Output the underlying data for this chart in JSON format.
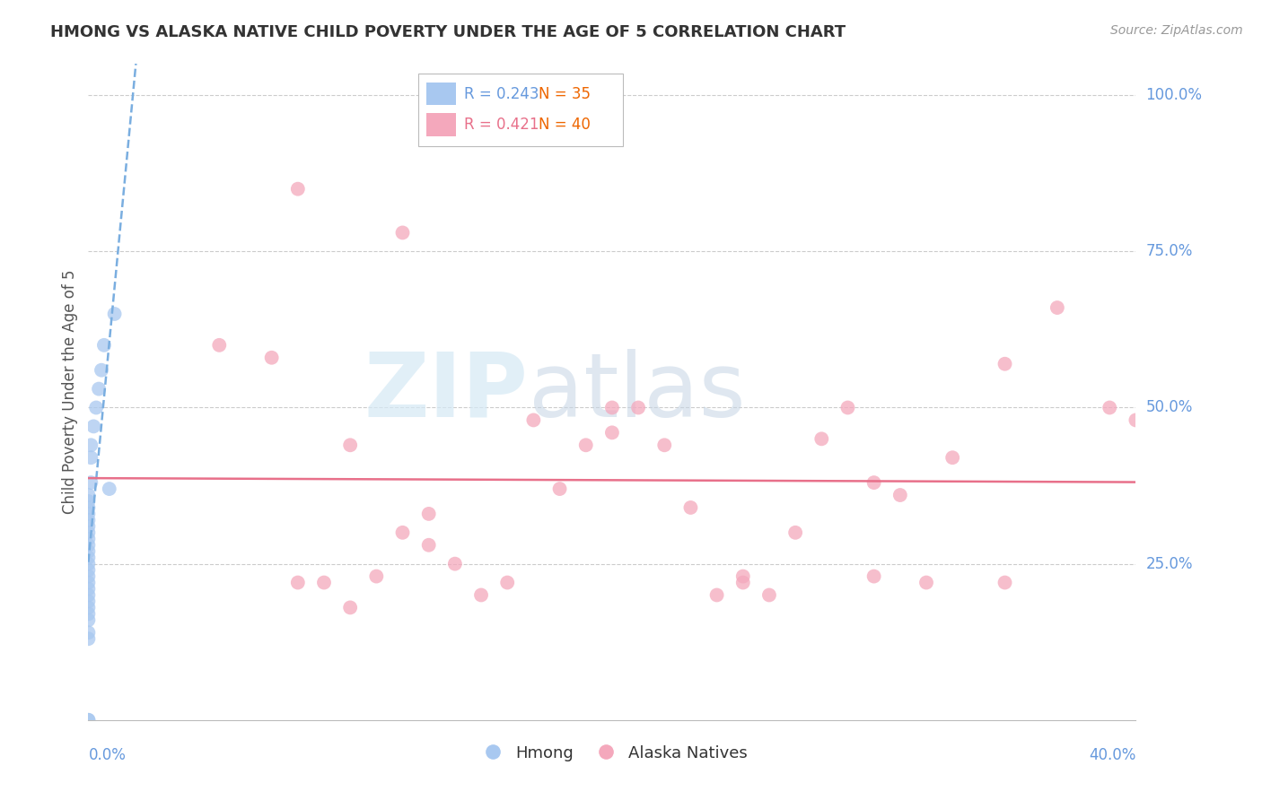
{
  "title": "HMONG VS ALASKA NATIVE CHILD POVERTY UNDER THE AGE OF 5 CORRELATION CHART",
  "source": "Source: ZipAtlas.com",
  "ylabel": "Child Poverty Under the Age of 5",
  "hmong_R": 0.243,
  "hmong_N": 35,
  "alaska_R": 0.421,
  "alaska_N": 40,
  "hmong_color": "#a8c8f0",
  "alaska_color": "#f4a8bc",
  "hmong_line_color": "#7aaee0",
  "alaska_line_color": "#e8708a",
  "watermark_zip": "ZIP",
  "watermark_atlas": "atlas",
  "watermark_color_zip": "#d8eaf8",
  "watermark_color_atlas": "#c8d8e8",
  "label_color": "#6699dd",
  "xlim": [
    0.0,
    0.4
  ],
  "ylim": [
    0.0,
    1.05
  ],
  "yticks": [
    0.25,
    0.5,
    0.75,
    1.0
  ],
  "ytick_labels": [
    "25.0%",
    "50.0%",
    "75.0%",
    "100.0%"
  ],
  "hmong_x": [
    0.0,
    0.0,
    0.0,
    0.0,
    0.0,
    0.0,
    0.0,
    0.0,
    0.0,
    0.0,
    0.0,
    0.0,
    0.0,
    0.0,
    0.0,
    0.0,
    0.0,
    0.0,
    0.0,
    0.0,
    0.0,
    0.0,
    0.0,
    0.0,
    0.0,
    0.001,
    0.001,
    0.001,
    0.002,
    0.003,
    0.004,
    0.005,
    0.006,
    0.008,
    0.01
  ],
  "hmong_y": [
    0.0,
    0.0,
    0.13,
    0.14,
    0.16,
    0.17,
    0.18,
    0.19,
    0.2,
    0.21,
    0.22,
    0.23,
    0.24,
    0.25,
    0.26,
    0.27,
    0.28,
    0.29,
    0.3,
    0.31,
    0.32,
    0.33,
    0.34,
    0.35,
    0.36,
    0.38,
    0.42,
    0.44,
    0.47,
    0.5,
    0.53,
    0.56,
    0.6,
    0.37,
    0.65
  ],
  "alaska_x": [
    0.05,
    0.07,
    0.09,
    0.1,
    0.11,
    0.12,
    0.13,
    0.14,
    0.15,
    0.16,
    0.17,
    0.18,
    0.19,
    0.2,
    0.21,
    0.22,
    0.23,
    0.24,
    0.25,
    0.26,
    0.27,
    0.28,
    0.29,
    0.3,
    0.31,
    0.32,
    0.33,
    0.35,
    0.37,
    0.39,
    0.08,
    0.08,
    0.1,
    0.12,
    0.13,
    0.2,
    0.25,
    0.3,
    0.35,
    0.4
  ],
  "alaska_y": [
    0.6,
    0.58,
    0.22,
    0.18,
    0.23,
    0.3,
    0.33,
    0.25,
    0.2,
    0.22,
    0.48,
    0.37,
    0.44,
    0.46,
    0.5,
    0.44,
    0.34,
    0.2,
    0.22,
    0.2,
    0.3,
    0.45,
    0.5,
    0.23,
    0.36,
    0.22,
    0.42,
    0.57,
    0.66,
    0.5,
    0.22,
    0.85,
    0.44,
    0.78,
    0.28,
    0.5,
    0.23,
    0.38,
    0.22,
    0.48
  ]
}
